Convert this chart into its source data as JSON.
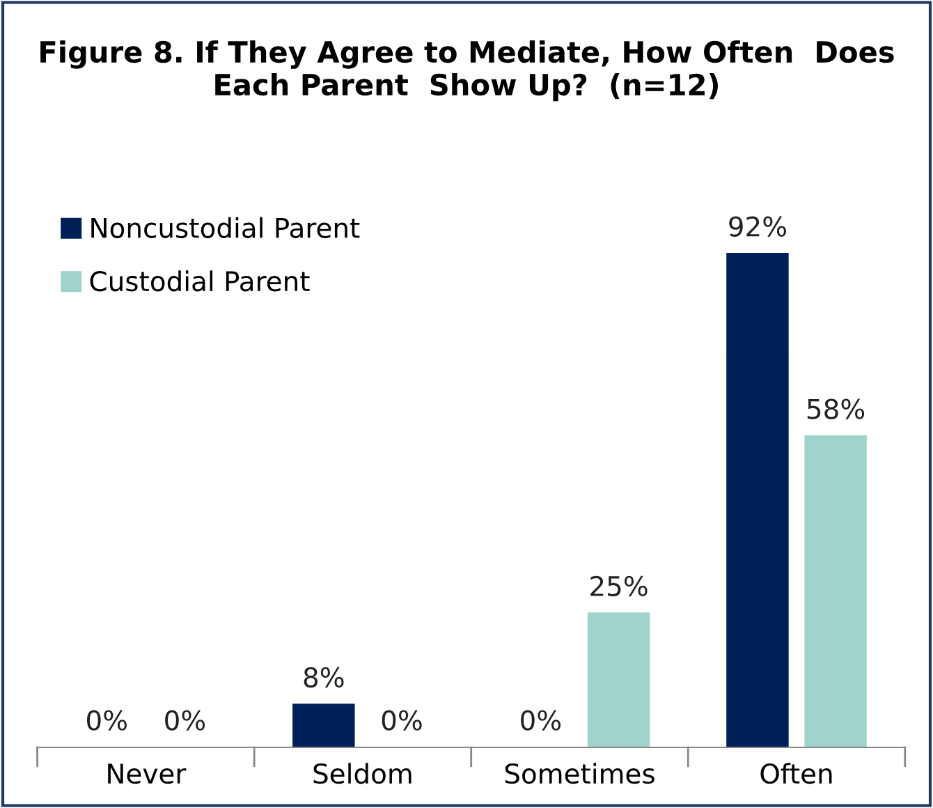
{
  "chart_data": {
    "type": "bar",
    "title": "Figure 8. If They Agree to Mediate, How Often  Does\nEach Parent  Show Up?  (n=12)",
    "categories": [
      "Never",
      "Seldom",
      "Sometimes",
      "Often"
    ],
    "series": [
      {
        "name": "Noncustodial Parent",
        "color": "#002157",
        "values": [
          0,
          8,
          0,
          92
        ],
        "value_labels": [
          "0%",
          "8%",
          "0%",
          "92%"
        ]
      },
      {
        "name": "Custodial Parent",
        "color": "#a0d3cc",
        "values": [
          0,
          0,
          25,
          58
        ],
        "value_labels": [
          "0%",
          "0%",
          "25%",
          "58%"
        ]
      }
    ],
    "legend": "top left",
    "grid": false
  }
}
